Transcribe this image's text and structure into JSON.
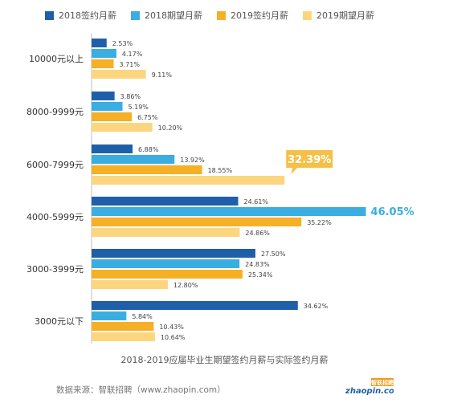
{
  "chart_data": {
    "type": "bar",
    "orientation": "horizontal",
    "categories": [
      "10000元以上",
      "8000-9999元",
      "6000-7999元",
      "4000-5999元",
      "3000-3999元",
      "3000元以下"
    ],
    "series": [
      {
        "name": "2018签约月薪",
        "color": "#1f5fa9",
        "values": [
          2.53,
          3.86,
          6.88,
          24.61,
          27.5,
          34.62
        ]
      },
      {
        "name": "2018期望月薪",
        "color": "#3aaee1",
        "values": [
          4.17,
          5.19,
          13.92,
          46.05,
          24.83,
          5.84
        ]
      },
      {
        "name": "2019签约月薪",
        "color": "#f5b025",
        "values": [
          3.71,
          6.75,
          18.55,
          35.22,
          25.34,
          10.43
        ]
      },
      {
        "name": "2019期望月薪",
        "color": "#fcd57f",
        "values": [
          9.11,
          10.2,
          32.39,
          24.86,
          12.8,
          10.64
        ]
      }
    ],
    "value_labels": [
      [
        "2.53%",
        "4.17%",
        "3.71%",
        "9.11%"
      ],
      [
        "3.86%",
        "5.19%",
        "6.75%",
        "10.20%"
      ],
      [
        "6.88%",
        "13.92%",
        "18.55%",
        "32.39%"
      ],
      [
        "24.61%",
        "46.05%",
        "35.22%",
        "24.86%"
      ],
      [
        "27.50%",
        "24.83%",
        "25.34%",
        "12.80%"
      ],
      [
        "34.62%",
        "5.84%",
        "10.43%",
        "10.64%"
      ]
    ],
    "callouts": [
      {
        "category_index": 2,
        "series_index": 3,
        "text": "32.39%",
        "style": "bubble",
        "color": "#f5c048"
      },
      {
        "category_index": 3,
        "series_index": 1,
        "text": "46.05%",
        "style": "text",
        "color": "#3aaee1"
      }
    ],
    "subtitle": "2018-2019应届毕业生期望签约月薪与实际签约月薪",
    "xlim": [
      0,
      48
    ],
    "grid": false,
    "legend": "top"
  },
  "source": "数据来源：智联招聘（www.zhaopin.com）",
  "logo": {
    "text": "智联招聘",
    "subtext": "zhaopin.com",
    "color": "#1f5fa9"
  }
}
